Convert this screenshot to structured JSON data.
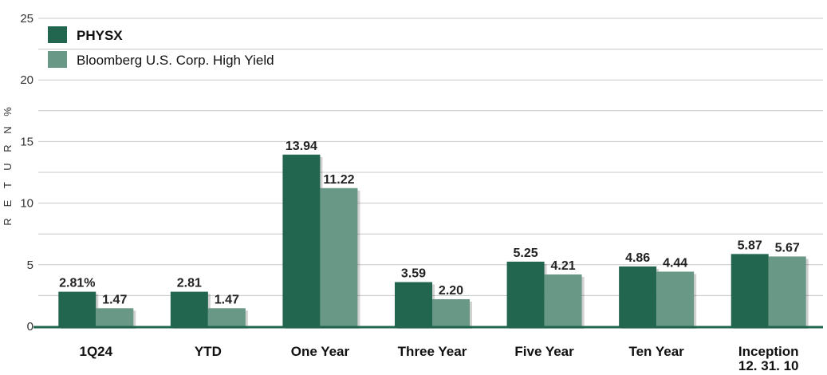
{
  "chart_data": {
    "type": "bar",
    "categories": [
      "1Q24",
      "YTD",
      "One Year",
      "Three Year",
      "Five Year",
      "Ten Year",
      "Inception 12. 31. 10"
    ],
    "series": [
      {
        "name": "PHYSX",
        "color": "#236650",
        "values": [
          2.81,
          2.81,
          13.94,
          3.59,
          5.25,
          4.86,
          5.87
        ],
        "labels": [
          "2.81%",
          "2.81",
          "13.94",
          "3.59",
          "5.25",
          "4.86",
          "5.87"
        ]
      },
      {
        "name": "Bloomberg U.S. Corp. High Yield",
        "color": "#6a9886",
        "values": [
          1.47,
          1.47,
          11.22,
          2.2,
          4.21,
          4.44,
          5.67
        ],
        "labels": [
          "1.47",
          "1.47",
          "11.22",
          "2.20",
          "4.21",
          "4.44",
          "5.67"
        ]
      }
    ],
    "category_lines": [
      [
        "1Q24"
      ],
      [
        "YTD"
      ],
      [
        "One Year"
      ],
      [
        "Three Year"
      ],
      [
        "Five Year"
      ],
      [
        "Ten Year"
      ],
      [
        "Inception",
        "12. 31. 10"
      ]
    ],
    "ylabel": "RETURN %",
    "ylabel_letters": [
      "R",
      "E",
      "T",
      "U",
      "R",
      "N",
      "%"
    ],
    "ylim": [
      0,
      25
    ],
    "yticks": [
      0,
      5,
      10,
      15,
      20,
      25
    ],
    "grid": true,
    "legend_position": "top-left"
  }
}
